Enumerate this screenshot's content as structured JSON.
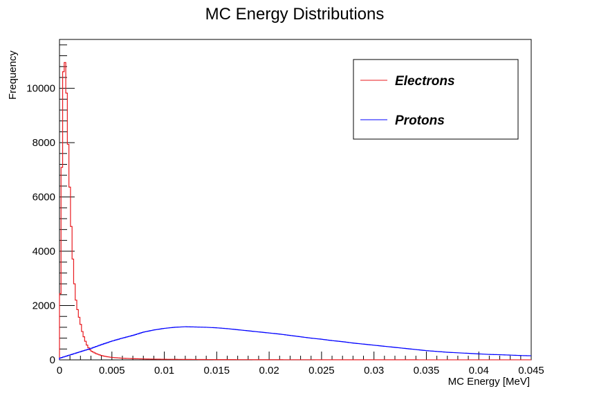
{
  "chart_data": {
    "type": "line",
    "title": "MC Energy Distributions",
    "xlabel": "MC Energy [MeV]",
    "ylabel": "Frequency",
    "xlim": [
      0,
      0.045
    ],
    "ylim": [
      0,
      11800
    ],
    "x_ticks": [
      0,
      0.005,
      0.01,
      0.015,
      0.02,
      0.025,
      0.03,
      0.035,
      0.04,
      0.045
    ],
    "x_tick_labels": [
      "0",
      "0.005",
      "0.01",
      "0.015",
      "0.02",
      "0.025",
      "0.03",
      "0.035",
      "0.04",
      "0.045"
    ],
    "y_ticks": [
      0,
      2000,
      4000,
      6000,
      8000,
      10000
    ],
    "y_tick_labels": [
      "0",
      "2000",
      "4000",
      "6000",
      "8000",
      "10000"
    ],
    "grid": false,
    "legend_position": "top-right",
    "series": [
      {
        "name": "Electrons",
        "color": "#e8191e",
        "x": [
          0,
          0.0002,
          0.0004,
          0.0006,
          0.0008,
          0.001,
          0.0012,
          0.0014,
          0.0016,
          0.0018,
          0.002,
          0.0022,
          0.0024,
          0.0026,
          0.0028,
          0.003,
          0.0035,
          0.004,
          0.0045,
          0.005,
          0.006,
          0.007,
          0.008,
          0.009,
          0.01,
          0.012,
          0.015,
          0.02,
          0.025,
          0.03,
          0.035,
          0.04,
          0.045
        ],
        "values": [
          0,
          6500,
          11200,
          10800,
          8200,
          6100,
          4200,
          2900,
          2100,
          1700,
          1350,
          1000,
          760,
          560,
          430,
          330,
          230,
          160,
          120,
          90,
          60,
          45,
          35,
          28,
          22,
          16,
          10,
          6,
          4,
          3,
          2,
          1,
          1
        ]
      },
      {
        "name": "Protons",
        "color": "#0000ff",
        "x": [
          0,
          0.001,
          0.002,
          0.003,
          0.004,
          0.005,
          0.006,
          0.007,
          0.008,
          0.009,
          0.01,
          0.011,
          0.012,
          0.013,
          0.014,
          0.015,
          0.016,
          0.017,
          0.018,
          0.019,
          0.02,
          0.021,
          0.022,
          0.023,
          0.024,
          0.025,
          0.026,
          0.027,
          0.028,
          0.029,
          0.03,
          0.031,
          0.032,
          0.033,
          0.034,
          0.035,
          0.036,
          0.037,
          0.038,
          0.039,
          0.04,
          0.041,
          0.042,
          0.043,
          0.044,
          0.045
        ],
        "values": [
          60,
          180,
          300,
          420,
          560,
          690,
          800,
          900,
          1020,
          1100,
          1160,
          1200,
          1220,
          1210,
          1200,
          1180,
          1150,
          1110,
          1070,
          1030,
          990,
          950,
          900,
          850,
          800,
          760,
          710,
          670,
          620,
          580,
          540,
          500,
          460,
          420,
          380,
          340,
          310,
          280,
          260,
          240,
          220,
          200,
          190,
          175,
          160,
          150
        ]
      }
    ]
  }
}
